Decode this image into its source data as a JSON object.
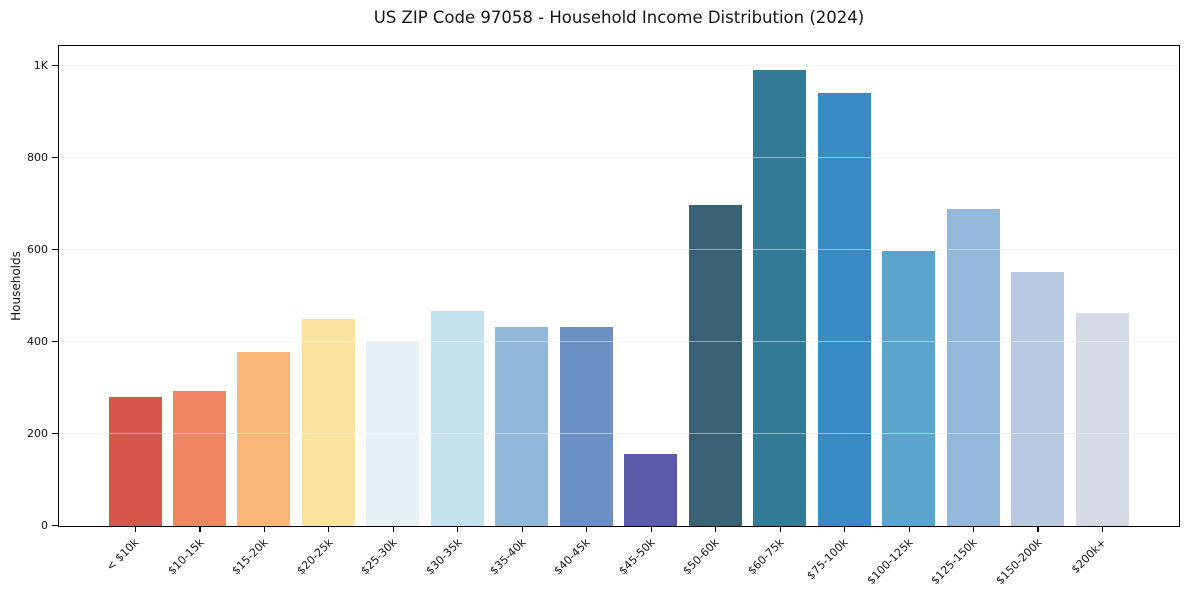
{
  "chart_data": {
    "type": "bar",
    "title": "US ZIP Code 97058 - Household Income Distribution (2024)",
    "xlabel": "",
    "ylabel": "Households",
    "categories": [
      "< $10k",
      "$10-15k",
      "$15-20k",
      "$20-25k",
      "$25-30k",
      "$30-35k",
      "$35-40k",
      "$40-45k",
      "$45-50k",
      "$50-60k",
      "$60-75k",
      "$75-100k",
      "$100-125k",
      "$125-150k",
      "$150-200k",
      "$200k+"
    ],
    "values": [
      281,
      294,
      379,
      450,
      400,
      468,
      434,
      432,
      156,
      699,
      993,
      941,
      598,
      690,
      552,
      463
    ],
    "bar_colors": [
      "#d7574e",
      "#f08566",
      "#fab878",
      "#fce3a2",
      "#e5f1f5",
      "#c4e1ed",
      "#91b8d9",
      "#6b91c4",
      "#5a5aa8",
      "#3a6174",
      "#357b96",
      "#398cc3",
      "#5aa4cd",
      "#93b8d9",
      "#b8c9e0",
      "#d6d9e6"
    ],
    "yticks": [
      {
        "value": 0,
        "label": "0"
      },
      {
        "value": 200,
        "label": "200"
      },
      {
        "value": 400,
        "label": "400"
      },
      {
        "value": 600,
        "label": "600"
      },
      {
        "value": 800,
        "label": "800"
      },
      {
        "value": 1000,
        "label": "1K"
      }
    ],
    "ylim": [
      0,
      1042
    ],
    "grid": "horizontal gridlines at y-ticks, light gray",
    "legend": "none",
    "background": "#ffffff"
  }
}
